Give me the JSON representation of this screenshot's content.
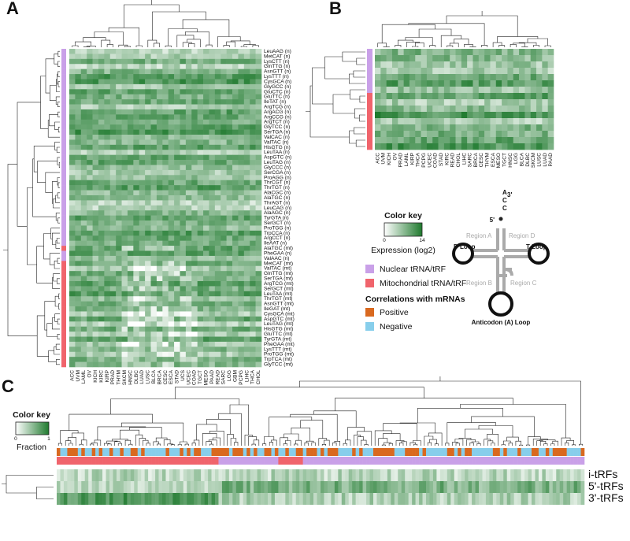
{
  "panel_a": {
    "label": "A",
    "rows": [
      "LeuAAG (n)",
      "MetCAT (n)",
      "LysCTT (n)",
      "GlnTTG (n)",
      "AsnGTT (n)",
      "LysTTT (n)",
      "CysGCA (n)",
      "GlyGCC (n)",
      "GluCTC (n)",
      "GluTTC (n)",
      "IleTAT (n)",
      "ArgTCG (n)",
      "ArgACG (n)",
      "ArgCCG (n)",
      "ArgTCT (n)",
      "GlyTCC (n)",
      "SerTGA (n)",
      "ValCAC (n)",
      "ValTAC (n)",
      "HisGTG (n)",
      "LeuTAA (n)",
      "AspGTC (n)",
      "LeuTAG (n)",
      "GlyCCC (n)",
      "SerCGA (n)",
      "ProAGG (n)",
      "ThrCGT (n)",
      "ThrTGT (n)",
      "AlaCGC (n)",
      "AlaTGC (n)",
      "ThrAGT (n)",
      "LeuCAG (n)",
      "AlaAGC (n)",
      "TyrGTA (n)",
      "SerGCT (n)",
      "ProTGG (n)",
      "TrpCCA (n)",
      "ArgCCT (n)",
      "IleAAT (n)",
      "AlaTGC (mt)",
      "PheGAA (n)",
      "ValAAC (n)",
      "MetCAT (mt)",
      "ValTAC (mt)",
      "GlnTTG (mt)",
      "SerTGA (mt)",
      "ArgTCG (mt)",
      "SerGCT (mt)",
      "LeuTAA (mt)",
      "ThrTGT (mt)",
      "AsnGTT (mt)",
      "IleGAT (mt)",
      "CysGCA (mt)",
      "AspGTC (mt)",
      "LeuTAG (mt)",
      "HisGTG (mt)",
      "GluTTC (mt)",
      "TyrGTA (mt)",
      "PheGAA (mt)",
      "LysTTT (mt)",
      "ProTGG (mt)",
      "TrpTCA (mt)",
      "GlyTCC (mt)"
    ],
    "columns": [
      "ACC",
      "UVM",
      "LAML",
      "OV",
      "KICH",
      "KIRC",
      "KIRP",
      "PRAD",
      "THYM",
      "SKCM",
      "HNSC",
      "DLBC",
      "LUAD",
      "LUSC",
      "BLCA",
      "BRCA",
      "CESC",
      "ESCA",
      "STAD",
      "UCS",
      "UCEC",
      "COAD",
      "TGCT",
      "MESO",
      "PAAD",
      "READ",
      "SARC",
      "LGG",
      "GBM",
      "PCPG",
      "LIHC",
      "THCA",
      "CHOL"
    ]
  },
  "panel_b": {
    "label": "B",
    "columns": [
      "ACC",
      "UVM",
      "KICH",
      "OV",
      "PRAD",
      "LAML",
      "KIRP",
      "THCA",
      "PCPG",
      "UCEC",
      "COAD",
      "STAD",
      "KIRC",
      "READ",
      "CHOL",
      "LIHC",
      "SARC",
      "BRCA",
      "CESC",
      "THYM",
      "ESCA",
      "MESO",
      "TGCT",
      "HNSC",
      "LGG",
      "BLCA",
      "DLBC",
      "SKCM",
      "LUSC",
      "LUAD",
      "PAAD"
    ]
  },
  "legend": {
    "color_key": {
      "title": "Color key",
      "min": 0,
      "max": 14,
      "label": "Expression (log2)"
    },
    "groups": [
      "Nuclear tRNA/tRF",
      "Mitochondrial tRNA/tRF"
    ],
    "correlations": {
      "title": "Correlations with mRNAs",
      "items": [
        "Positive",
        "Negative"
      ]
    }
  },
  "trna": {
    "five_prime": "5'",
    "three_prime": "3'",
    "bases": [
      "A",
      "C",
      "C"
    ],
    "regions": [
      "Region A",
      "Region D",
      "Region B",
      "Region C"
    ],
    "loops": [
      "D Loop",
      "T Loop",
      "Anticodon (A) Loop"
    ]
  },
  "panel_c": {
    "label": "C",
    "rows": [
      "i-tRFs",
      "5'-tRFs",
      "3'-tRFs"
    ],
    "color_key": {
      "title": "Color key",
      "min": 0,
      "max": 1,
      "label": "Fraction"
    }
  }
}
